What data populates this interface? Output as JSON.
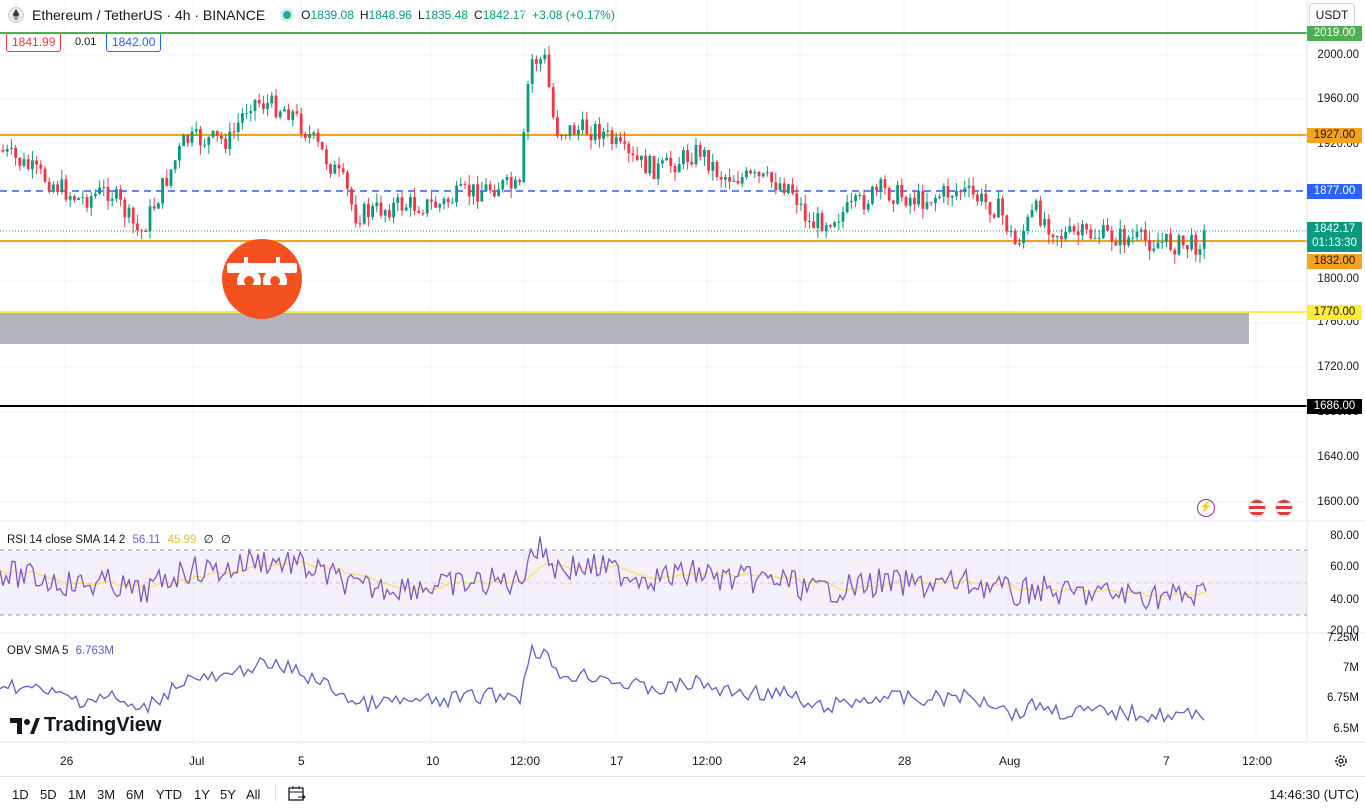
{
  "header": {
    "symbol": "Ethereum / TetherUS · 4h · BINANCE",
    "open_label": "O",
    "open": "1839.08",
    "high_label": "H",
    "high": "1848.96",
    "low_label": "L",
    "low": "1835.48",
    "close_label": "C",
    "close": "1842.17",
    "change": "+3.08 (+0.17%)",
    "bid": "1841.99",
    "spread": "0.01",
    "ask": "1842.00",
    "currency": "USDT",
    "colors": {
      "up": "#089981",
      "down": "#f23645",
      "bid": "#f23645",
      "ask": "#2962ff"
    }
  },
  "price_axis": {
    "ticks": [
      "2000.00",
      "1960.00",
      "1920.00",
      "1800.00",
      "1760.00",
      "1720.00",
      "1680.00",
      "1640.00",
      "1600.00"
    ],
    "levels": [
      {
        "label": "2019.00",
        "color": "#4caf50"
      },
      {
        "label": "1927.00",
        "color": "#f7a21b"
      },
      {
        "label": "1877.00",
        "color": "#2962ff"
      },
      {
        "label": "1832.00",
        "color": "#f7a21b"
      },
      {
        "label": "1770.00",
        "color": "#ffeb3b"
      },
      {
        "label": "1686.00",
        "color": "#000000"
      }
    ],
    "current_price": "1842.17",
    "countdown": "01:13:30",
    "zone_color": "#b2b5be"
  },
  "rsi": {
    "title": "RSI 14 close SMA 14 2",
    "value": "56.11",
    "sma_value": "45.99",
    "extra1": "∅",
    "extra2": "∅",
    "ticks": [
      "80.00",
      "60.00",
      "40.00",
      "20.00"
    ],
    "line_color": "#7e57c2",
    "sma_color": "#f5e263"
  },
  "obv": {
    "title": "OBV SMA 5",
    "value": "6.763M",
    "ticks": [
      "7.25M",
      "7M",
      "6.75M",
      "6.5M"
    ],
    "line_color": "#5b5fc7"
  },
  "time_axis": {
    "labels": [
      "26",
      "Jul",
      "5",
      "10",
      "12:00",
      "17",
      "12:00",
      "24",
      "28",
      "Aug",
      "7",
      "12:00"
    ]
  },
  "branding": {
    "logo_text": "TradingView"
  },
  "bottom_bar": {
    "ranges": [
      "1D",
      "5D",
      "1M",
      "3M",
      "6M",
      "YTD",
      "1Y",
      "5Y",
      "All"
    ],
    "clock": "14:46:30 (UTC)"
  },
  "icons": [
    "symbol-logo-icon",
    "market-status-icon",
    "calendar-range-icon",
    "settings-gear-icon",
    "lightning-icon",
    "us-flag-icon",
    "watermark-logo-icon"
  ]
}
